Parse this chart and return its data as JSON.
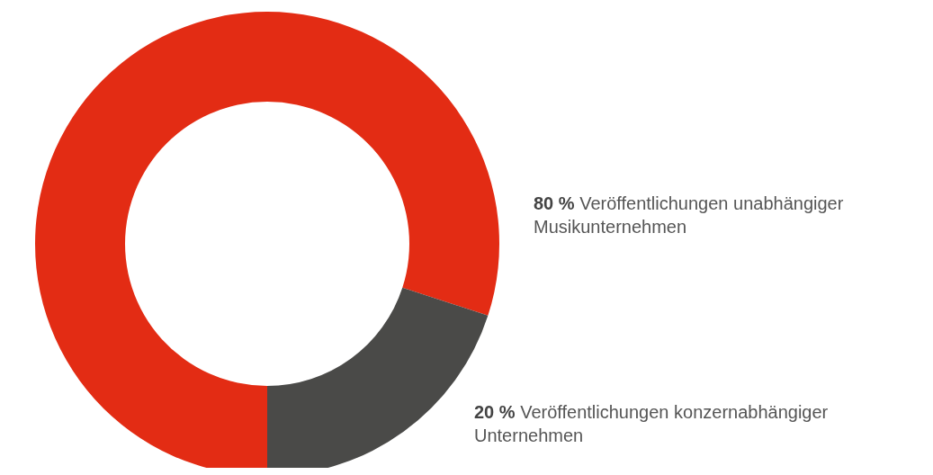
{
  "chart_data": {
    "type": "donut",
    "categories": [
      "Veröffentlichungen unabhängiger Musikunternehmen",
      "Veröffentlichungen konzernabhängiger Unternehmen"
    ],
    "values": [
      80,
      20
    ],
    "value_labels": [
      "80 %",
      "20 %"
    ],
    "colors": [
      "#e32c14",
      "#4a4a48"
    ]
  }
}
